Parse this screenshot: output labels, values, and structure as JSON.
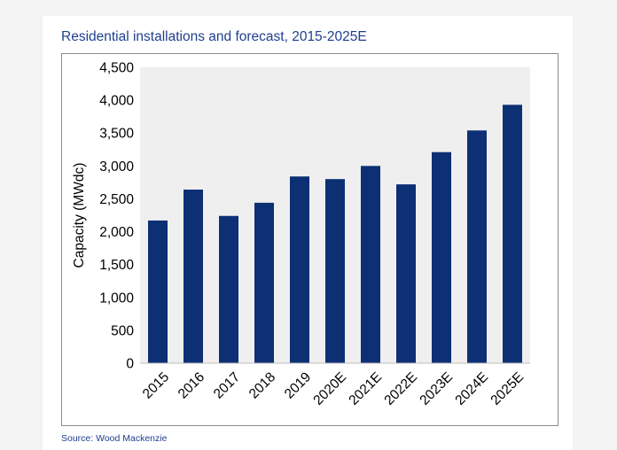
{
  "title": "Residential installations and forecast, 2015-2025E",
  "source": "Source: Wood Mackenzie",
  "colors": {
    "bar": "#0d2f74",
    "plot_bg": "#efefef",
    "title": "#1f3f8f"
  },
  "chart_data": {
    "type": "bar",
    "title": "Residential installations and forecast, 2015-2025E",
    "xlabel": "",
    "ylabel": "Capacity (MWdc)",
    "categories": [
      "2015",
      "2016",
      "2017",
      "2018",
      "2019",
      "2020E",
      "2021E",
      "2022E",
      "2023E",
      "2024E",
      "2025E"
    ],
    "values": [
      2170,
      2640,
      2240,
      2440,
      2840,
      2800,
      3000,
      2720,
      3210,
      3540,
      3930
    ],
    "ylim": [
      0,
      4500
    ],
    "yticks": [
      0,
      500,
      1000,
      1500,
      2000,
      2500,
      3000,
      3500,
      4000,
      4500
    ],
    "ytick_labels": [
      "0",
      "500",
      "1,000",
      "1,500",
      "2,000",
      "2,500",
      "3,000",
      "3,500",
      "4,000",
      "4,500"
    ],
    "grid": false,
    "legend": "none"
  }
}
